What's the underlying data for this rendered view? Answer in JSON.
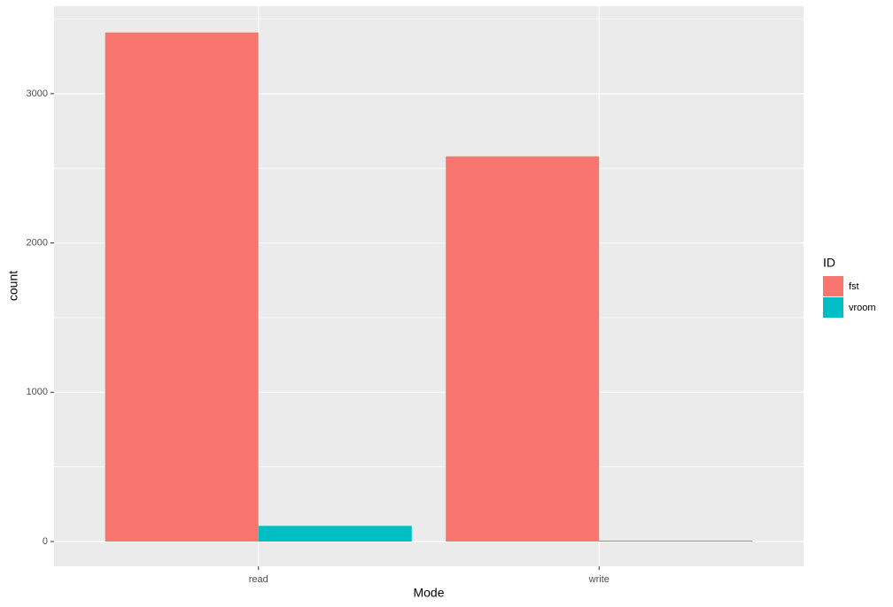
{
  "chart_data": {
    "type": "bar",
    "x_label": "Mode",
    "y_label": "count",
    "categories": [
      "read",
      "write"
    ],
    "series": [
      {
        "name": "fst",
        "color": "#f8766d",
        "values": [
          3410,
          2580
        ]
      },
      {
        "name": "vroom",
        "color": "#00bfc4",
        "values": [
          105,
          5
        ]
      }
    ],
    "legend_title": "ID",
    "ylim": [
      -166,
      3586
    ],
    "yticks": [
      0,
      1000,
      2000,
      3000
    ],
    "y_minor_ticks": [
      500,
      1500,
      2500,
      3500
    ],
    "grid": true,
    "legend": "right"
  }
}
